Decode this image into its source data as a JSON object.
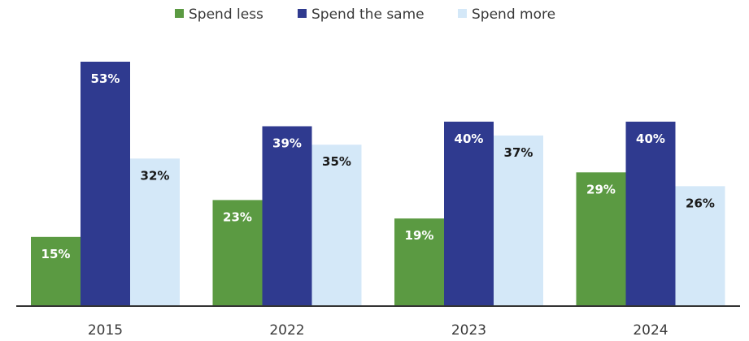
{
  "chart_data": {
    "type": "bar",
    "title": "",
    "xlabel": "",
    "ylabel": "",
    "categories": [
      "2015",
      "2022",
      "2023",
      "2024"
    ],
    "series": [
      {
        "name": "Spend less",
        "color": "#5b9a42",
        "label_color": "#ffffff",
        "values": [
          15,
          23,
          19,
          29
        ],
        "labels": [
          "15%",
          "23%",
          "19%",
          "29%"
        ]
      },
      {
        "name": "Spend the same",
        "color": "#2f3a8f",
        "label_color": "#ffffff",
        "values": [
          53,
          39,
          40,
          40
        ],
        "labels": [
          "53%",
          "39%",
          "40%",
          "40%"
        ]
      },
      {
        "name": "Spend more",
        "color": "#d4e8f8",
        "label_color": "#1a1a1a",
        "values": [
          32,
          35,
          37,
          26
        ],
        "labels": [
          "32%",
          "35%",
          "37%",
          "26%"
        ]
      }
    ],
    "ylim": [
      0,
      53
    ],
    "grid": false,
    "legend_position": "top-center",
    "axis_color": "#333333"
  }
}
